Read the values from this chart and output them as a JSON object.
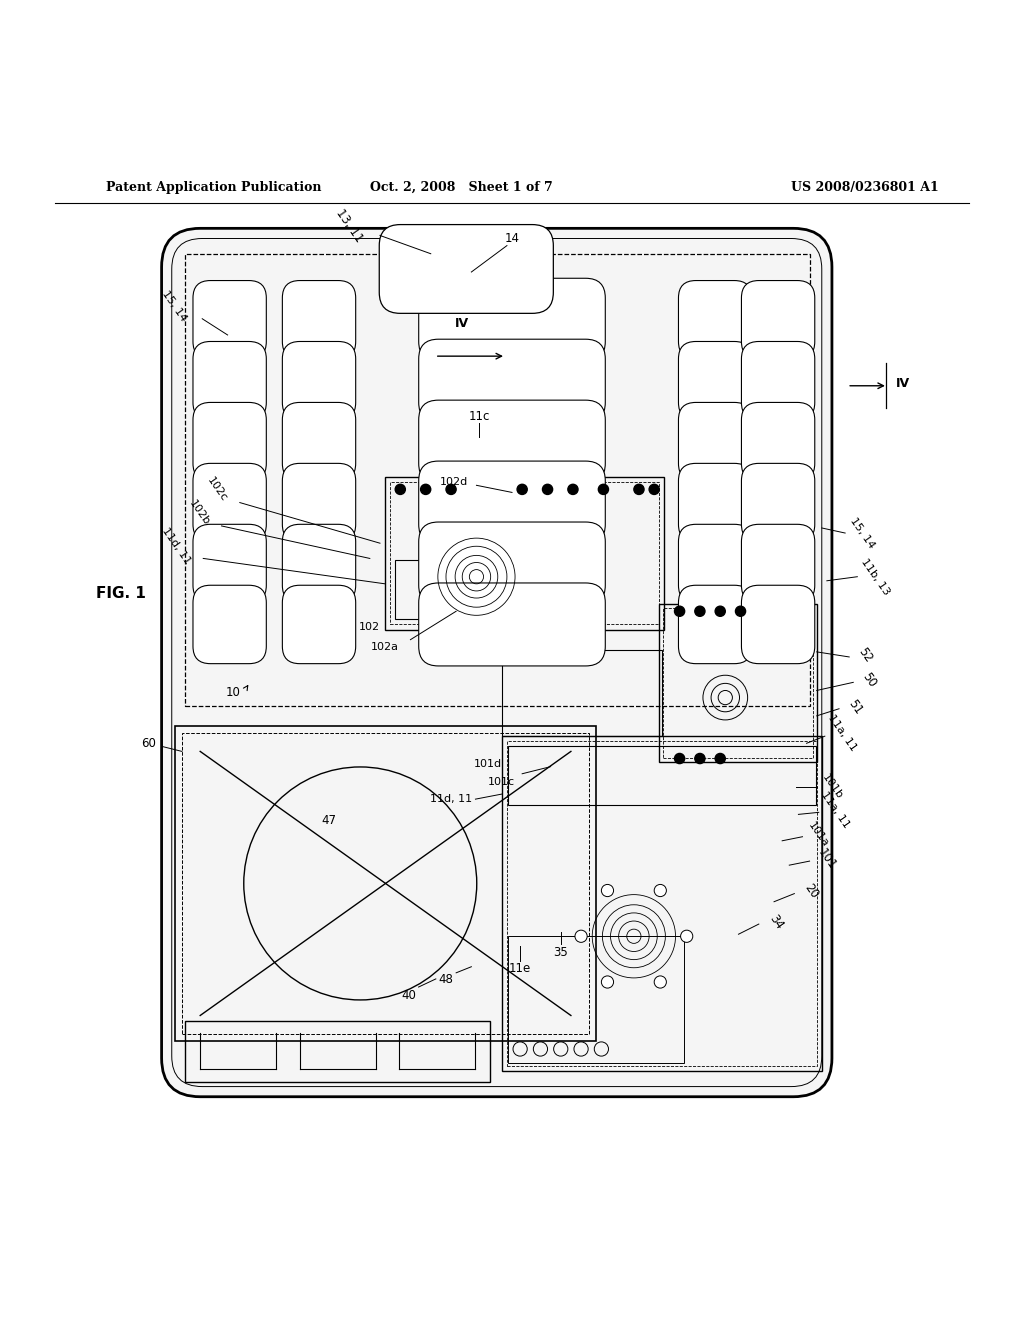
{
  "bg_color": "#ffffff",
  "header_left": "Patent Application Publication",
  "header_center": "Oct. 2, 2008   Sheet 1 of 7",
  "header_right": "US 2008/0236801 A1"
}
